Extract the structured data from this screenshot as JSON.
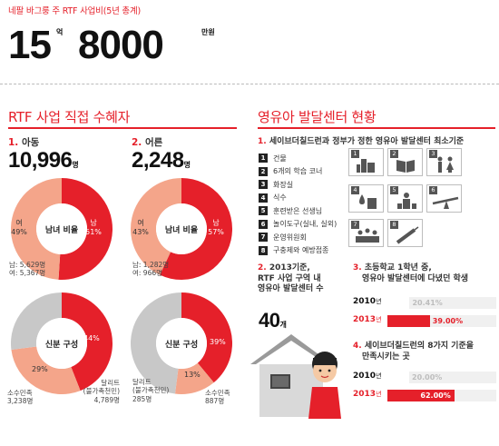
{
  "header": {
    "label": "네팔 바그룽 주 RTF 사업비(5년 총계)",
    "amount_part1": "15",
    "unit_eok": "억",
    "amount_part2": "8000",
    "unit_man": "만원"
  },
  "left": {
    "title": "RTF 사업 직접 수혜자",
    "children": {
      "num": "1.",
      "label": "아동",
      "count": "10,996",
      "unit": "명",
      "gender": {
        "center": "남녀 비율",
        "female_label": "여",
        "female_pct": "49%",
        "male_label": "남",
        "male_pct": "51%",
        "female_value": 49,
        "male_value": 51,
        "note_male": "남: 5,629명",
        "note_female": "여: 5,367명"
      },
      "composition": {
        "center": "신분 구성",
        "minority_label": "소수민족",
        "minority_count": "3,238명",
        "minority_pct": "29%",
        "dalit_label": "달리트",
        "dalit_sub": "(불가촉천민)",
        "dalit_count": "4,789명",
        "dalit_pct": "44%",
        "minority_value": 29,
        "dalit_value": 44
      }
    },
    "adults": {
      "num": "2.",
      "label": "어른",
      "count": "2,248",
      "unit": "명",
      "gender": {
        "center": "남녀 비율",
        "female_label": "여",
        "female_pct": "43%",
        "male_label": "남",
        "male_pct": "57%",
        "female_value": 43,
        "male_value": 57,
        "note_male": "남: 1,282명",
        "note_female": "여: 966명"
      },
      "composition": {
        "center": "신분 구성",
        "dalit_label": "달리트",
        "dalit_sub": "(불가촉천민)",
        "dalit_count": "285명",
        "dalit_pct": "13%",
        "minority_label": "소수민족",
        "minority_count": "887명",
        "minority_pct": "39%",
        "dalit_value": 13,
        "minority_value": 39
      }
    }
  },
  "right": {
    "title": "영유아 발달센터 현황",
    "criteria_title_num": "1.",
    "criteria_title": "세이브더칠드런과 정부가 정한 영유아 발달센터 최소기준",
    "criteria": [
      "건물",
      "6개의 학습 코너",
      "화장실",
      "식수",
      "훈련받은 선생님",
      "놀이도구(실내, 실외)",
      "운영위원회",
      "구충제와 예방접종"
    ],
    "icons": [
      "building-icon",
      "learning-books-icon",
      "toilet-icon",
      "water-icon",
      "teacher-icon",
      "seesaw-icon",
      "committee-icon",
      "vaccine-icon"
    ],
    "centers": {
      "num": "2.",
      "line1": "2013기준,",
      "line2": "RTF 사업 구역 내",
      "line3": "영유아 발달센터 수",
      "count": "40",
      "unit": "개"
    },
    "stat3": {
      "num": "3.",
      "line1": "초등학교 1학년 중,",
      "line2": "영유아 발달센터에 다녔던 학생",
      "rows": [
        {
          "year": "2010",
          "unit": "년",
          "value": 20.41,
          "label": "20.41%"
        },
        {
          "year": "2013",
          "unit": "년",
          "value": 39.0,
          "label": "39.00%"
        }
      ]
    },
    "stat4": {
      "num": "4.",
      "line1": "세이브더칠드런의 8가지 기준을",
      "line2": "만족시키는 곳",
      "rows": [
        {
          "year": "2010",
          "unit": "년",
          "value": 20.0,
          "label": "20.00%"
        },
        {
          "year": "2013",
          "unit": "년",
          "value": 62.0,
          "label": "62.00%"
        }
      ]
    }
  },
  "colors": {
    "red": "#e5202a",
    "salmon": "#f4a58a",
    "gray": "#c8c8c8",
    "dark": "#111111"
  }
}
